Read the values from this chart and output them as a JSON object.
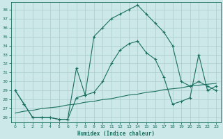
{
  "title": "",
  "xlabel": "Humidex (Indice chaleur)",
  "ylabel": "",
  "background_color": "#cce8e8",
  "grid_color": "#aacccc",
  "line_color": "#1a7060",
  "xlim": [
    -0.5,
    23.5
  ],
  "ylim": [
    25.5,
    38.8
  ],
  "yticks": [
    26,
    27,
    28,
    29,
    30,
    31,
    32,
    33,
    34,
    35,
    36,
    37,
    38
  ],
  "xticks": [
    0,
    1,
    2,
    3,
    4,
    5,
    6,
    7,
    8,
    9,
    10,
    11,
    12,
    13,
    14,
    15,
    16,
    17,
    18,
    19,
    20,
    21,
    22,
    23
  ],
  "line1_x": [
    0,
    1,
    2,
    3,
    4,
    5,
    6,
    7,
    8,
    9,
    10,
    11,
    12,
    13,
    14,
    15,
    16,
    17,
    18,
    19,
    20,
    21,
    22,
    23
  ],
  "line1_y": [
    29.0,
    27.5,
    26.0,
    26.0,
    26.0,
    25.8,
    25.8,
    31.5,
    28.5,
    35.0,
    36.0,
    37.0,
    37.5,
    38.0,
    38.5,
    37.5,
    36.5,
    35.5,
    34.0,
    30.0,
    29.5,
    30.0,
    29.5,
    29.0
  ],
  "line2_x": [
    0,
    1,
    2,
    3,
    4,
    5,
    6,
    7,
    8,
    9,
    10,
    11,
    12,
    13,
    14,
    15,
    16,
    17,
    18,
    19,
    20,
    21,
    22,
    23
  ],
  "line2_y": [
    29.0,
    27.5,
    26.0,
    26.0,
    26.0,
    25.8,
    25.8,
    28.2,
    28.5,
    28.8,
    30.0,
    32.0,
    33.5,
    34.2,
    34.5,
    33.2,
    32.5,
    30.5,
    27.5,
    27.8,
    28.2,
    33.0,
    29.0,
    29.5
  ],
  "line3_x": [
    0,
    1,
    2,
    3,
    4,
    5,
    6,
    7,
    8,
    9,
    10,
    11,
    12,
    13,
    14,
    15,
    16,
    17,
    18,
    19,
    20,
    21,
    22,
    23
  ],
  "line3_y": [
    26.5,
    26.7,
    26.8,
    27.0,
    27.1,
    27.2,
    27.4,
    27.5,
    27.7,
    27.8,
    28.0,
    28.1,
    28.3,
    28.5,
    28.6,
    28.8,
    28.9,
    29.1,
    29.2,
    29.3,
    29.5,
    29.6,
    29.7,
    29.8
  ]
}
